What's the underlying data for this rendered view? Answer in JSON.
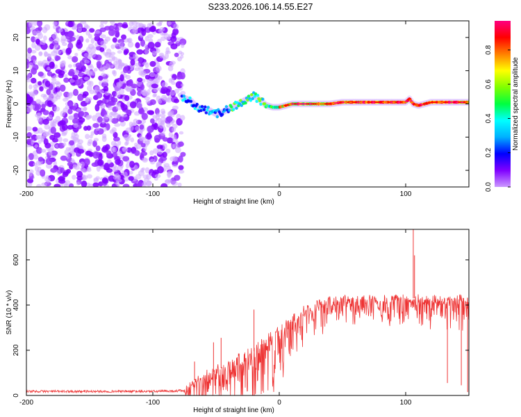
{
  "chart_data": [
    {
      "type": "heatmap",
      "title": "S233.2026.106.14.55.E27",
      "xlabel": "Height of straight line (km)",
      "ylabel": "Frequency (Hz)",
      "xlim": [
        -200,
        150
      ],
      "ylim": [
        -25,
        25
      ],
      "xticks": [
        -200,
        -100,
        0,
        100
      ],
      "yticks": [
        -20,
        -10,
        0,
        10,
        20
      ],
      "colorbar": {
        "label": "Normalized spectral amplitude",
        "range": [
          0,
          0.97
        ],
        "ticks": [
          0.0,
          0.2,
          0.4,
          0.6,
          0.8
        ],
        "colors": [
          "#cc99ff",
          "#8000ff",
          "#0000ff",
          "#00b0ff",
          "#00ffff",
          "#00ff40",
          "#80ff00",
          "#ffff00",
          "#ff8000",
          "#ff0000",
          "#ff0080"
        ]
      },
      "noise_region": {
        "x": [
          -200,
          -76
        ],
        "freq": [
          -25,
          25
        ]
      },
      "ridge": {
        "x": [
          -77,
          -70,
          -65,
          -60,
          -55,
          -50,
          -45,
          -40,
          -35,
          -30,
          -25,
          -20,
          -15,
          -10,
          -5,
          0,
          5,
          10,
          20,
          30,
          40,
          50,
          60,
          70,
          80,
          90,
          100,
          103,
          106,
          110,
          120,
          130,
          140,
          150
        ],
        "freq": [
          2,
          1,
          -1,
          -1.5,
          -2,
          -3,
          -2.5,
          -1.5,
          -0.5,
          0.5,
          1.5,
          2.5,
          1,
          -0.5,
          -1,
          -1,
          -0.5,
          0,
          0,
          0,
          0,
          0.5,
          0.5,
          0.5,
          0.5,
          0.5,
          0.5,
          1.5,
          0,
          -0.5,
          0.5,
          0.5,
          0.5,
          0.5
        ]
      }
    },
    {
      "type": "line",
      "title": "",
      "xlabel": "Height of straight line (km)",
      "ylabel": "SNR (10 * v/v)",
      "xlim": [
        -200,
        150
      ],
      "ylim": [
        0,
        735
      ],
      "xticks": [
        -200,
        -100,
        0,
        100
      ],
      "yticks": [
        0,
        200,
        400,
        600
      ],
      "series": [
        {
          "name": "SNR",
          "color": "#ee3333",
          "x": [
            -200,
            -150,
            -100,
            -80,
            -75,
            -70,
            -60,
            -50,
            -40,
            -30,
            -20,
            -10,
            0,
            10,
            20,
            30,
            40,
            50,
            60,
            70,
            80,
            90,
            100,
            110,
            120,
            130,
            140,
            150
          ],
          "values": [
            18,
            18,
            18,
            20,
            25,
            60,
            85,
            110,
            135,
            165,
            195,
            240,
            290,
            340,
            375,
            410,
            425,
            430,
            430,
            430,
            430,
            430,
            430,
            430,
            430,
            430,
            430,
            430
          ],
          "spread": [
            10,
            10,
            10,
            10,
            18,
            55,
            70,
            85,
            95,
            110,
            120,
            110,
            100,
            90,
            80,
            65,
            55,
            50,
            50,
            50,
            55,
            55,
            60,
            60,
            60,
            60,
            60,
            60
          ],
          "spikes": [
            {
              "x": -67,
              "value": 150
            },
            {
              "x": -52,
              "value": 235
            },
            {
              "x": -46,
              "value": 255
            },
            {
              "x": -20,
              "value": 380
            },
            {
              "x": 106,
              "value": 735
            },
            {
              "x": 107,
              "value": 620
            },
            {
              "x": 133,
              "value": 55
            },
            {
              "x": 144,
              "value": 45
            },
            {
              "x": 149,
              "value": 15
            }
          ]
        }
      ]
    }
  ]
}
